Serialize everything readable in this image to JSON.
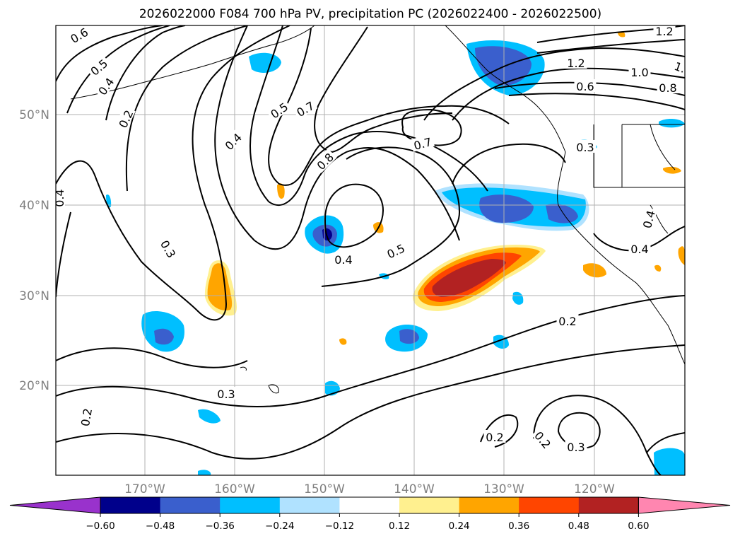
{
  "title": "2026022000 F084 700 hPa PV, precipitation PC (2026022400 - 2026022500)",
  "map": {
    "lon_labels": [
      "170°W",
      "160°W",
      "150°W",
      "140°W",
      "130°W",
      "120°W"
    ],
    "lat_labels": [
      "50°N",
      "40°N",
      "30°N",
      "20°N"
    ],
    "contour_labels": [
      "0.6",
      "0.5",
      "0.4",
      "0.2",
      "0.4",
      "0.3",
      "0.2",
      "0.5",
      "0.7",
      "0.4",
      "0.8",
      "0.7",
      "0.4",
      "0.5",
      "0.3",
      "1.2",
      "1.0",
      "0.8",
      "0.6",
      "1.2",
      "1.",
      "0.3",
      "0.4",
      "0.2",
      "0.2",
      "0.2",
      "0.3",
      "0.4"
    ]
  },
  "colorbar": {
    "ticks": [
      "−0.60",
      "−0.48",
      "−0.36",
      "−0.24",
      "−0.12",
      "0.12",
      "0.24",
      "0.36",
      "0.48",
      "0.60"
    ],
    "colors": [
      "#9932cc",
      "#00008b",
      "#3a5fcd",
      "#00bfff",
      "#b0e2ff",
      "#ffffff",
      "#fff08f",
      "#ffa500",
      "#ff4500",
      "#b22222",
      "#ff86b0"
    ]
  }
}
